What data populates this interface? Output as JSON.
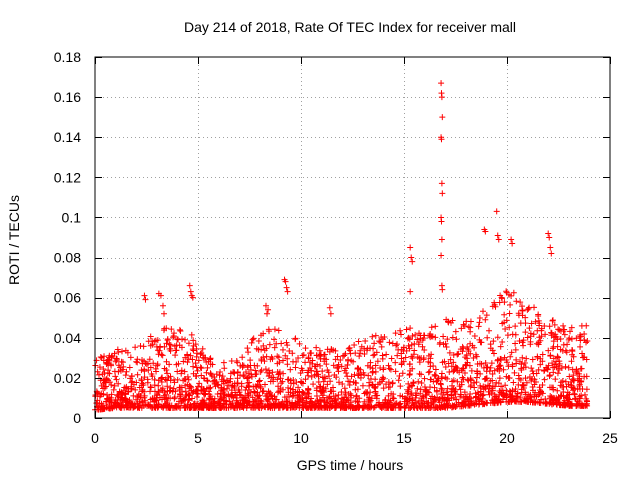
{
  "chart_data": {
    "type": "scatter",
    "title": "Day 214 of 2018, Rate Of TEC Index for receiver mall",
    "xlabel": "GPS time / hours",
    "ylabel": "ROTI / TECUs",
    "xlim": [
      0,
      25
    ],
    "ylim": [
      0,
      0.18
    ],
    "x_ticks": [
      0,
      5,
      10,
      15,
      20,
      25
    ],
    "x_tick_labels": [
      "0",
      "5",
      "10",
      "15",
      "20",
      "25"
    ],
    "y_ticks": [
      0,
      0.02,
      0.04,
      0.06,
      0.08,
      0.1,
      0.12,
      0.14,
      0.16,
      0.18
    ],
    "y_tick_labels": [
      "0",
      "0.02",
      "0.04",
      "0.06",
      "0.08",
      "0.1",
      "0.12",
      "0.14",
      "0.16",
      "0.18"
    ],
    "grid": true,
    "marker": "+",
    "series": [
      {
        "name": "ROTI",
        "color": "#ff0000",
        "hours_range": [
          0,
          23.9
        ],
        "background_envelope": {
          "hours": [
            0,
            1,
            2,
            3,
            4,
            5,
            6,
            7,
            8,
            9,
            10,
            11,
            12,
            13,
            14,
            15,
            16,
            17,
            18,
            19,
            20,
            21,
            22,
            23,
            23.9
          ],
          "min": [
            0.004,
            0.005,
            0.005,
            0.005,
            0.005,
            0.005,
            0.005,
            0.005,
            0.005,
            0.005,
            0.005,
            0.005,
            0.005,
            0.005,
            0.005,
            0.005,
            0.005,
            0.005,
            0.006,
            0.007,
            0.008,
            0.008,
            0.007,
            0.006,
            0.006
          ],
          "max": [
            0.03,
            0.034,
            0.036,
            0.045,
            0.046,
            0.04,
            0.028,
            0.03,
            0.045,
            0.045,
            0.038,
            0.035,
            0.035,
            0.04,
            0.042,
            0.044,
            0.048,
            0.05,
            0.05,
            0.055,
            0.065,
            0.058,
            0.05,
            0.046,
            0.048
          ]
        },
        "notable_points": [
          {
            "x": 2.4,
            "y": 0.061
          },
          {
            "x": 2.45,
            "y": 0.059
          },
          {
            "x": 3.1,
            "y": 0.062
          },
          {
            "x": 3.2,
            "y": 0.061
          },
          {
            "x": 3.3,
            "y": 0.056
          },
          {
            "x": 3.35,
            "y": 0.052
          },
          {
            "x": 4.6,
            "y": 0.066
          },
          {
            "x": 4.65,
            "y": 0.063
          },
          {
            "x": 4.7,
            "y": 0.061
          },
          {
            "x": 4.75,
            "y": 0.06
          },
          {
            "x": 8.3,
            "y": 0.056
          },
          {
            "x": 8.4,
            "y": 0.054
          },
          {
            "x": 8.35,
            "y": 0.052
          },
          {
            "x": 9.2,
            "y": 0.069
          },
          {
            "x": 9.25,
            "y": 0.068
          },
          {
            "x": 9.3,
            "y": 0.065
          },
          {
            "x": 9.35,
            "y": 0.063
          },
          {
            "x": 11.4,
            "y": 0.055
          },
          {
            "x": 11.45,
            "y": 0.052
          },
          {
            "x": 15.3,
            "y": 0.085
          },
          {
            "x": 15.35,
            "y": 0.08
          },
          {
            "x": 15.4,
            "y": 0.078
          },
          {
            "x": 15.3,
            "y": 0.063
          },
          {
            "x": 16.8,
            "y": 0.167
          },
          {
            "x": 16.82,
            "y": 0.162
          },
          {
            "x": 16.84,
            "y": 0.16
          },
          {
            "x": 16.86,
            "y": 0.15
          },
          {
            "x": 16.8,
            "y": 0.14
          },
          {
            "x": 16.82,
            "y": 0.139
          },
          {
            "x": 16.84,
            "y": 0.117
          },
          {
            "x": 16.86,
            "y": 0.112
          },
          {
            "x": 16.8,
            "y": 0.1
          },
          {
            "x": 16.82,
            "y": 0.098
          },
          {
            "x": 16.84,
            "y": 0.089
          },
          {
            "x": 16.8,
            "y": 0.081
          },
          {
            "x": 16.84,
            "y": 0.066
          },
          {
            "x": 16.86,
            "y": 0.064
          },
          {
            "x": 18.9,
            "y": 0.094
          },
          {
            "x": 18.95,
            "y": 0.093
          },
          {
            "x": 19.5,
            "y": 0.103
          },
          {
            "x": 19.55,
            "y": 0.091
          },
          {
            "x": 19.6,
            "y": 0.089
          },
          {
            "x": 20.2,
            "y": 0.089
          },
          {
            "x": 20.25,
            "y": 0.087
          },
          {
            "x": 22.0,
            "y": 0.092
          },
          {
            "x": 22.05,
            "y": 0.09
          },
          {
            "x": 22.1,
            "y": 0.085
          },
          {
            "x": 22.15,
            "y": 0.082
          }
        ]
      }
    ]
  }
}
